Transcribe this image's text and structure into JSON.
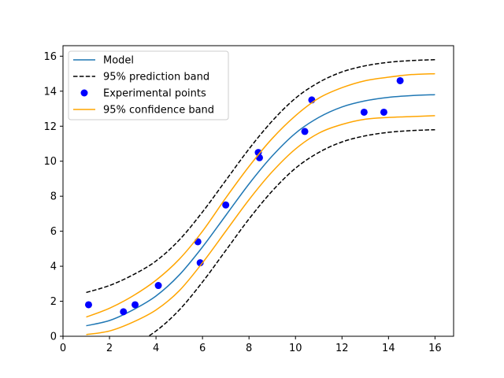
{
  "chart_data": {
    "type": "line",
    "title": "",
    "xlabel": "",
    "ylabel": "",
    "xlim": [
      0,
      16.8
    ],
    "ylim": [
      0,
      16.6
    ],
    "xticks": [
      0,
      2,
      4,
      6,
      8,
      10,
      12,
      14,
      16
    ],
    "yticks": [
      0,
      2,
      4,
      6,
      8,
      10,
      12,
      14,
      16
    ],
    "xtick_labels": [
      "0",
      "2",
      "4",
      "6",
      "8",
      "10",
      "12",
      "14",
      "16"
    ],
    "ytick_labels": [
      "0",
      "2",
      "4",
      "6",
      "8",
      "10",
      "12",
      "14",
      "16"
    ],
    "grid": false,
    "legend_position": "upper-left",
    "x": [
      1,
      2,
      3,
      4,
      5,
      6,
      7,
      8,
      9,
      10,
      11,
      12,
      13,
      14,
      15,
      16
    ],
    "series": [
      {
        "name": "Model",
        "kind": "line",
        "style": "solid",
        "color": "#1f77b4",
        "values": [
          0.6,
          0.9,
          1.5,
          2.3,
          3.5,
          5.1,
          6.9,
          8.7,
          10.3,
          11.6,
          12.5,
          13.1,
          13.45,
          13.65,
          13.75,
          13.8
        ]
      },
      {
        "name": "95% prediction band",
        "kind": "band",
        "style": "dashed",
        "color": "#000000",
        "upper": [
          2.5,
          2.9,
          3.5,
          4.3,
          5.5,
          7.1,
          8.9,
          10.7,
          12.3,
          13.6,
          14.5,
          15.1,
          15.45,
          15.65,
          15.75,
          15.8
        ],
        "lower": [
          -1.4,
          -1.1,
          -0.5,
          0.3,
          1.5,
          3.1,
          4.9,
          6.7,
          8.3,
          9.6,
          10.5,
          11.1,
          11.45,
          11.65,
          11.75,
          11.8
        ]
      },
      {
        "name": "Experimental points",
        "kind": "scatter",
        "color": "#0000ff",
        "points": [
          [
            1.1,
            1.8
          ],
          [
            2.6,
            1.4
          ],
          [
            3.1,
            1.8
          ],
          [
            4.1,
            2.9
          ],
          [
            5.8,
            5.4
          ],
          [
            5.9,
            4.2
          ],
          [
            7.0,
            7.5
          ],
          [
            8.4,
            10.5
          ],
          [
            8.45,
            10.2
          ],
          [
            10.4,
            11.7
          ],
          [
            10.7,
            13.5
          ],
          [
            12.95,
            12.8
          ],
          [
            13.8,
            12.8
          ],
          [
            14.5,
            14.6
          ]
        ]
      },
      {
        "name": "95% confidence band",
        "kind": "band",
        "style": "solid",
        "color": "#ffa500",
        "upper": [
          1.1,
          1.6,
          2.3,
          3.2,
          4.4,
          6.0,
          7.9,
          9.7,
          11.3,
          12.6,
          13.6,
          14.2,
          14.6,
          14.8,
          14.95,
          15.0
        ],
        "lower": [
          0.1,
          0.3,
          0.8,
          1.5,
          2.6,
          4.2,
          6.0,
          7.8,
          9.4,
          10.7,
          11.6,
          12.1,
          12.4,
          12.5,
          12.55,
          12.6
        ]
      }
    ]
  }
}
